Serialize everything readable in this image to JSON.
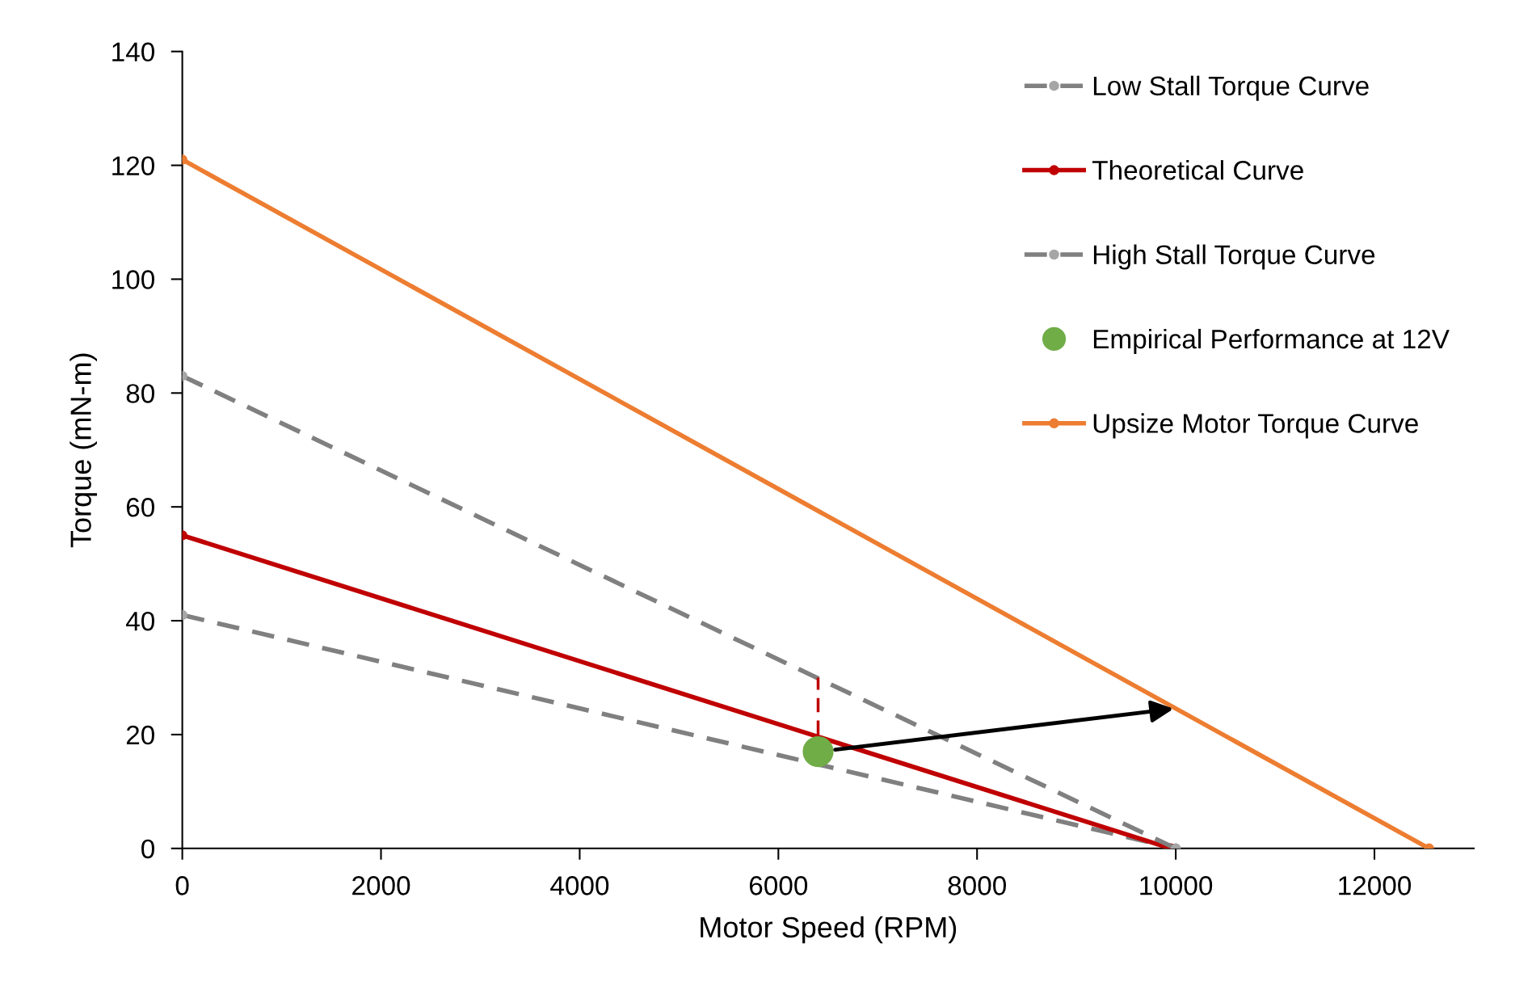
{
  "chart_data": {
    "type": "line",
    "xlabel": "Motor Speed (RPM)",
    "ylabel": "Torque (mN-m)",
    "xlim": [
      0,
      13000
    ],
    "xticks": [
      0,
      2000,
      4000,
      6000,
      8000,
      10000,
      12000
    ],
    "ylim": [
      0,
      140
    ],
    "yticks": [
      0,
      20,
      40,
      60,
      80,
      100,
      120,
      140
    ],
    "grid": false,
    "legend": "top right",
    "marker": "circle",
    "series": [
      {
        "name": "Low Stall Torque Curve",
        "color": "#808080",
        "line_style": "dashed",
        "x": [
          0,
          10000
        ],
        "values": [
          41,
          0
        ]
      },
      {
        "name": "Theoretical Curve",
        "color": "#c00000",
        "line_style": "solid",
        "x": [
          0,
          9950
        ],
        "values": [
          55,
          0
        ]
      },
      {
        "name": "High Stall Torque Curve",
        "color": "#808080",
        "line_style": "dashed",
        "x": [
          0,
          10000
        ],
        "values": [
          83,
          0
        ]
      },
      {
        "name": "Empirical Performance at 12V",
        "type": "scatter",
        "color": "#70ad47",
        "x": [
          6400
        ],
        "values": [
          17
        ]
      },
      {
        "name": "Upsize Motor Torque Curve",
        "color": "#ed7d31",
        "line_style": "solid",
        "x": [
          0,
          12550
        ],
        "values": [
          121,
          0
        ]
      },
      {
        "color": "#c00000",
        "line_style": "dashed",
        "marker": "none",
        "x": [
          6400,
          6400
        ],
        "values": [
          20,
          30
        ]
      }
    ]
  }
}
